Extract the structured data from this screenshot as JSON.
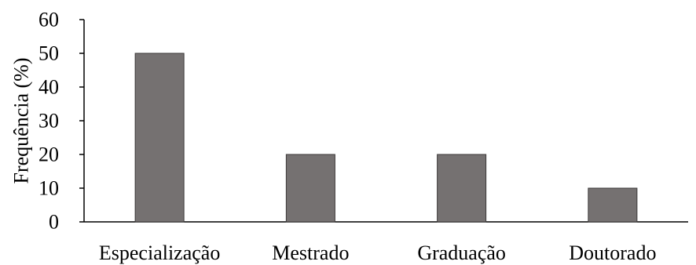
{
  "chart_data": {
    "type": "bar",
    "categories": [
      "Especialização",
      "Mestrado",
      "Graduação",
      "Doutorado"
    ],
    "values": [
      50,
      20,
      20,
      10
    ],
    "title": "",
    "xlabel": "",
    "ylabel": "Frequência (%)",
    "ylim": [
      0,
      60
    ],
    "yticks": [
      0,
      10,
      20,
      30,
      40,
      50,
      60
    ],
    "grid": false,
    "legend": "none",
    "bar_color": "#757171",
    "bar_edge_color": "#3b3838",
    "axis_color": "#000000"
  }
}
